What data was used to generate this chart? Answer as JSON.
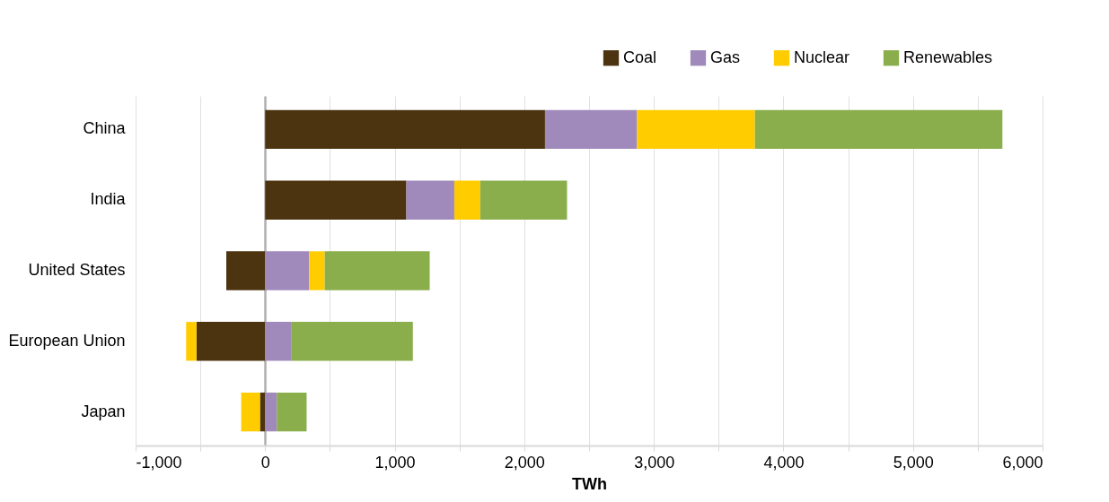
{
  "chart_data": {
    "type": "bar",
    "orientation": "horizontal",
    "stacked": true,
    "xlabel": "TWh",
    "categories": [
      "China",
      "India",
      "United States",
      "European Union",
      "Japan"
    ],
    "series": [
      {
        "name": "Coal",
        "color": "#4d3410",
        "values": [
          2160,
          1090,
          -300,
          -530,
          -40
        ]
      },
      {
        "name": "Gas",
        "color": "#a08abb",
        "values": [
          710,
          370,
          340,
          200,
          90
        ]
      },
      {
        "name": "Nuclear",
        "color": "#ffcc00",
        "values": [
          910,
          200,
          120,
          -80,
          -145
        ]
      },
      {
        "name": "Renewables",
        "color": "#8aae4c",
        "values": [
          1910,
          670,
          810,
          940,
          230
        ]
      }
    ],
    "xlim": [
      -1000,
      6000
    ],
    "xticks": [
      {
        "value": -1000,
        "label": "-1,000"
      },
      {
        "value": -500,
        "label": null
      },
      0,
      {
        "value": 500,
        "label": null
      },
      {
        "value": 1000,
        "label": "1,000"
      },
      {
        "value": 1500,
        "label": null
      },
      {
        "value": 2000,
        "label": "2,000"
      },
      {
        "value": 2500,
        "label": null
      },
      {
        "value": 3000,
        "label": "3,000"
      },
      {
        "value": 3500,
        "label": null
      },
      {
        "value": 4000,
        "label": "4,000"
      },
      {
        "value": 4500,
        "label": null
      },
      {
        "value": 5000,
        "label": "5,000"
      },
      {
        "value": 5500,
        "label": null
      },
      {
        "value": 6000,
        "label": "6,000"
      }
    ],
    "grid": "x",
    "legend": "top right"
  }
}
